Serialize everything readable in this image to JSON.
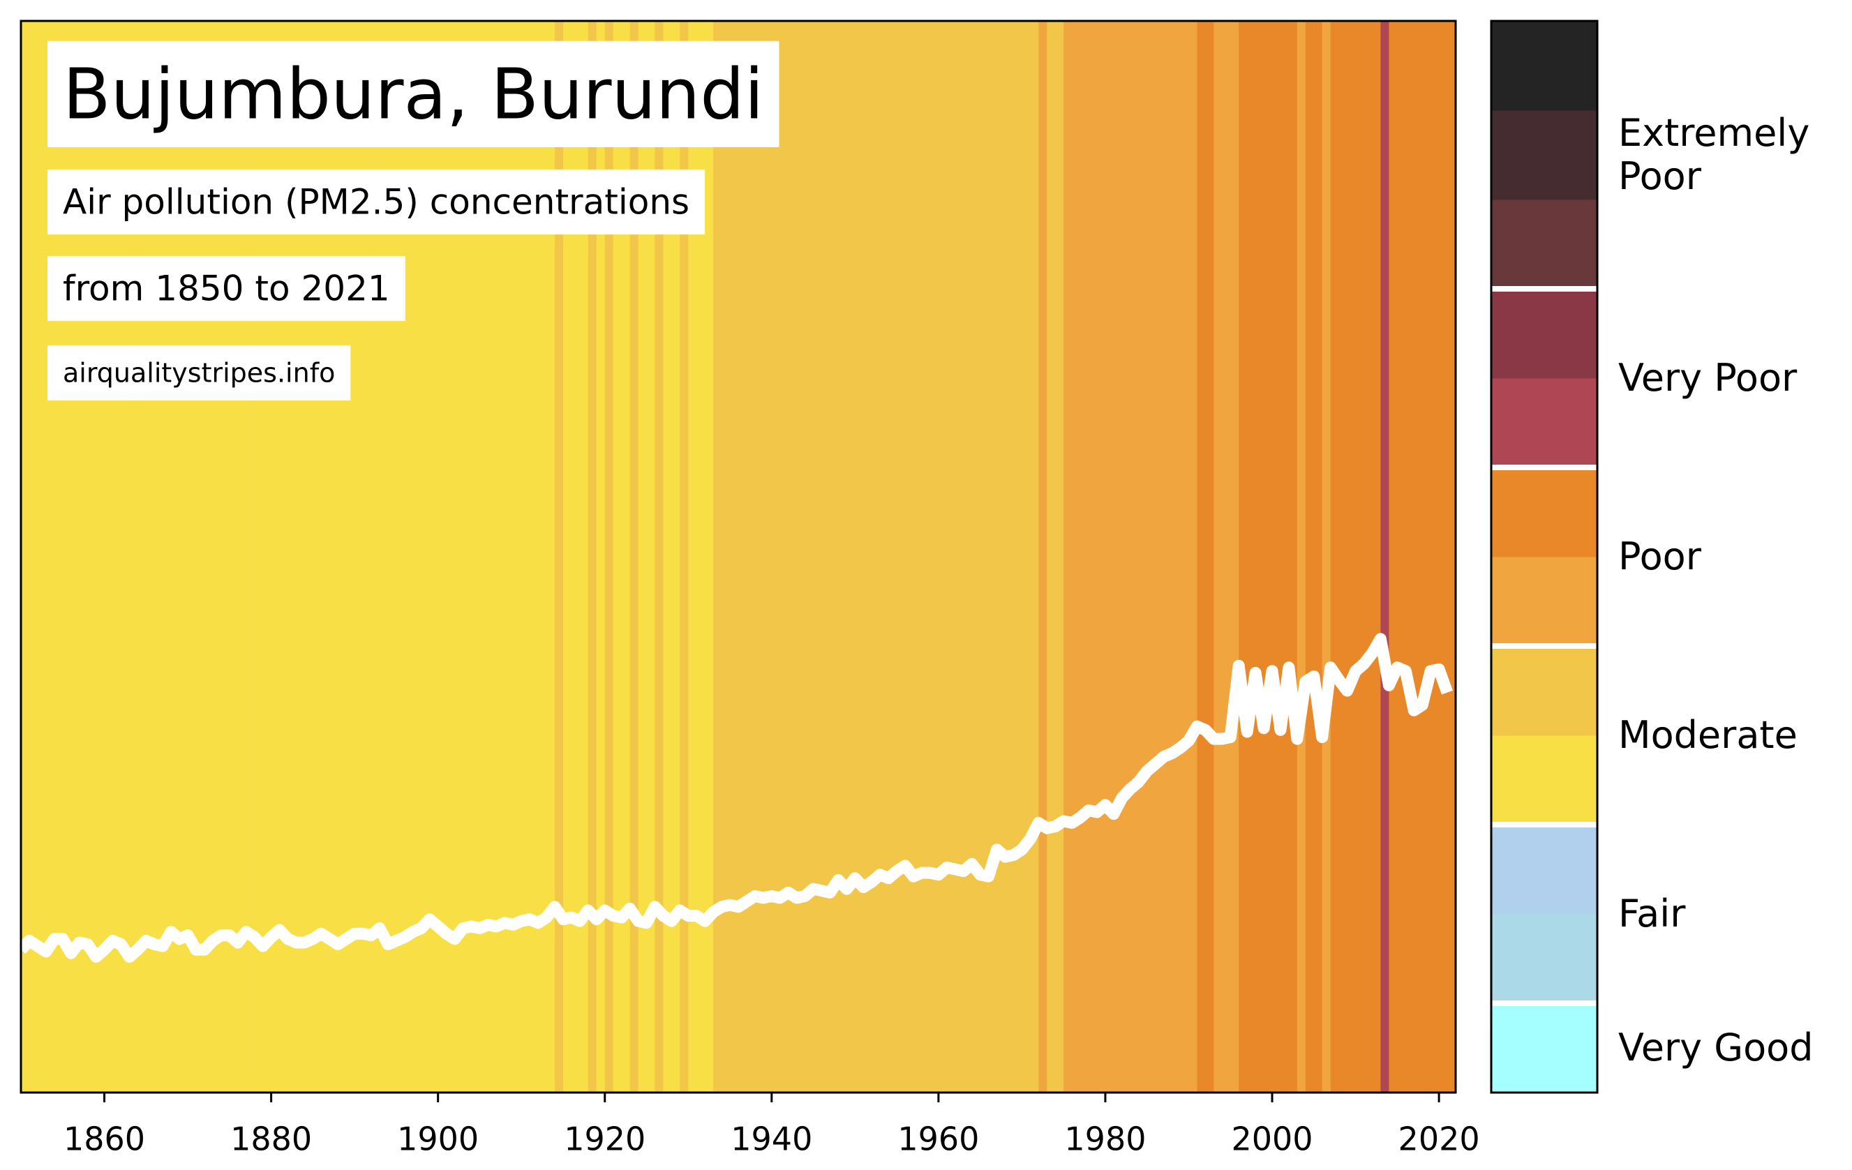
{
  "chart_data": {
    "type": "stripes",
    "title": "Bujumbura, Burundi",
    "subtitle": "Air pollution (PM2.5) concentrations",
    "period": "from 1850 to 2021",
    "source": "airqualitystripes.info",
    "x": [
      1850,
      1851,
      1852,
      1853,
      1854,
      1855,
      1856,
      1857,
      1858,
      1859,
      1860,
      1861,
      1862,
      1863,
      1864,
      1865,
      1866,
      1867,
      1868,
      1869,
      1870,
      1871,
      1872,
      1873,
      1874,
      1875,
      1876,
      1877,
      1878,
      1879,
      1880,
      1881,
      1882,
      1883,
      1884,
      1885,
      1886,
      1887,
      1888,
      1889,
      1890,
      1891,
      1892,
      1893,
      1894,
      1895,
      1896,
      1897,
      1898,
      1899,
      1900,
      1901,
      1902,
      1903,
      1904,
      1905,
      1906,
      1907,
      1908,
      1909,
      1910,
      1911,
      1912,
      1913,
      1914,
      1915,
      1916,
      1917,
      1918,
      1919,
      1920,
      1921,
      1922,
      1923,
      1924,
      1925,
      1926,
      1927,
      1928,
      1929,
      1930,
      1931,
      1932,
      1933,
      1934,
      1935,
      1936,
      1937,
      1938,
      1939,
      1940,
      1941,
      1942,
      1943,
      1944,
      1945,
      1946,
      1947,
      1948,
      1949,
      1950,
      1951,
      1952,
      1953,
      1954,
      1955,
      1956,
      1957,
      1958,
      1959,
      1960,
      1961,
      1962,
      1963,
      1964,
      1965,
      1966,
      1967,
      1968,
      1969,
      1970,
      1971,
      1972,
      1973,
      1974,
      1975,
      1976,
      1977,
      1978,
      1979,
      1980,
      1981,
      1982,
      1983,
      1984,
      1985,
      1986,
      1987,
      1988,
      1989,
      1990,
      1991,
      1992,
      1993,
      1994,
      1995,
      1996,
      1997,
      1998,
      1999,
      2000,
      2001,
      2002,
      2003,
      2004,
      2005,
      2006,
      2007,
      2008,
      2009,
      2010,
      2011,
      2012,
      2013,
      2014,
      2015,
      2016,
      2017,
      2018,
      2019,
      2020,
      2021
    ],
    "values": [
      18.0,
      18.5,
      18.2,
      17.9,
      18.6,
      18.6,
      17.8,
      18.4,
      18.3,
      17.6,
      18.0,
      18.5,
      18.3,
      17.6,
      18.0,
      18.5,
      18.3,
      18.2,
      19.0,
      18.6,
      18.8,
      18.0,
      18.0,
      18.5,
      18.8,
      18.8,
      18.4,
      19.0,
      18.7,
      18.2,
      18.7,
      19.1,
      18.6,
      18.4,
      18.4,
      18.6,
      18.9,
      18.6,
      18.3,
      18.6,
      18.9,
      18.9,
      18.8,
      19.2,
      18.3,
      18.5,
      18.7,
      19.0,
      19.2,
      19.7,
      19.3,
      18.9,
      18.6,
      19.2,
      19.3,
      19.2,
      19.4,
      19.3,
      19.5,
      19.4,
      19.6,
      19.7,
      19.5,
      19.8,
      20.4,
      19.7,
      19.8,
      19.6,
      20.2,
      19.7,
      20.2,
      19.9,
      19.8,
      20.3,
      19.6,
      19.5,
      20.4,
      19.9,
      19.6,
      20.2,
      19.9,
      19.9,
      19.6,
      20.1,
      20.4,
      20.5,
      20.4,
      20.7,
      21.0,
      20.9,
      21.0,
      20.9,
      21.2,
      20.9,
      21.0,
      21.4,
      21.3,
      21.2,
      21.9,
      21.4,
      22.0,
      21.5,
      21.8,
      22.2,
      22.0,
      22.4,
      22.7,
      22.1,
      22.3,
      22.3,
      22.2,
      22.6,
      22.5,
      22.4,
      22.8,
      22.2,
      22.1,
      23.6,
      23.2,
      23.3,
      23.6,
      24.2,
      25.1,
      24.8,
      24.9,
      25.2,
      25.1,
      25.4,
      25.8,
      25.7,
      26.1,
      25.6,
      26.5,
      27.0,
      27.4,
      28.0,
      28.4,
      28.8,
      29.0,
      29.3,
      29.7,
      30.5,
      30.3,
      29.8,
      29.8,
      29.9,
      33.9,
      30.2,
      33.5,
      30.4,
      33.6,
      30.3,
      33.8,
      29.8,
      33.0,
      33.3,
      29.9,
      33.8,
      33.1,
      32.5,
      33.6,
      34.0,
      34.6,
      35.4,
      32.8,
      33.8,
      33.6,
      31.4,
      31.7,
      33.6,
      33.7,
      32.4
    ],
    "line_color": "#ffffff",
    "xlim": [
      1850,
      2022
    ],
    "xticks": [
      1860,
      1880,
      1900,
      1920,
      1940,
      1960,
      1980,
      2000,
      2020
    ],
    "ylim": [
      10,
      70
    ],
    "color_bounds": [
      0,
      5,
      10,
      15,
      20,
      25,
      30,
      35,
      40,
      45,
      50,
      55,
      60
    ],
    "legend": [
      {
        "label": "Very Good",
        "colors": [
          "#a6ffff"
        ]
      },
      {
        "label": "Fair",
        "colors": [
          "#acd9e7",
          "#b1d0ee"
        ]
      },
      {
        "label": "Moderate",
        "colors": [
          "#f8df46",
          "#f2c649"
        ]
      },
      {
        "label": "Poor",
        "colors": [
          "#f0a53f",
          "#e88829"
        ]
      },
      {
        "label": "Very Poor",
        "colors": [
          "#ae4653",
          "#8a3846"
        ]
      },
      {
        "label": "Extremely\nPoor",
        "colors": [
          "#69383b",
          "#452c30",
          "#242424"
        ]
      }
    ]
  }
}
